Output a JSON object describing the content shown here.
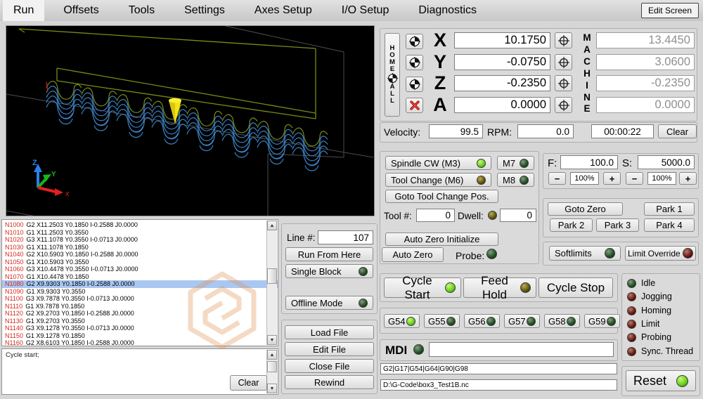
{
  "colors": {
    "led_bright_green": "#6cd41c",
    "led_dark_green": "#224d22",
    "led_olive": "#5d530f",
    "led_dark_red": "#64180f",
    "path_blue": "#3b82c4",
    "path_olive": "#7a8c12",
    "tool_yellow": "#f5e414",
    "selected_row_blue": "#a9c7f1",
    "gcode_lineno_red": "#d3291d"
  },
  "tab_bar": {
    "tabs": [
      {
        "label": "Run",
        "active": true
      },
      {
        "label": "Offsets",
        "active": false
      },
      {
        "label": "Tools",
        "active": false
      },
      {
        "label": "Settings",
        "active": false
      },
      {
        "label": "Axes Setup",
        "active": false
      },
      {
        "label": "I/O Setup",
        "active": false
      },
      {
        "label": "Diagnostics",
        "active": false
      }
    ],
    "edit_screen_label": "Edit Screen"
  },
  "dro": {
    "home_all_top": "HOME",
    "home_all_bottom": "ALL",
    "machine_label": "MACHINE",
    "axes": [
      {
        "label": "X",
        "work": "10.1750",
        "machine": "13.4450"
      },
      {
        "label": "Y",
        "work": "-0.0750",
        "machine": "3.0600"
      },
      {
        "label": "Z",
        "work": "-0.2350",
        "machine": "-0.2350"
      },
      {
        "label": "A",
        "work": "0.0000",
        "machine": "0.0000"
      }
    ]
  },
  "velocity_row": {
    "velocity_label": "Velocity:",
    "velocity": "99.5",
    "rpm_label": "RPM:",
    "rpm": "0.0",
    "timer": "00:00:22",
    "clear_label": "Clear"
  },
  "spindle": {
    "spindle_cw": "Spindle CW (M3)",
    "m7": "M7",
    "tool_change": "Tool Change (M6)",
    "m8": "M8",
    "goto_tool_change": "Goto Tool Change Pos.",
    "tool_label": "Tool #:",
    "tool_value": "0",
    "dwell_label": "Dwell:",
    "dwell_value": "0",
    "auto_zero_init": "Auto Zero Initialize",
    "auto_zero": "Auto Zero",
    "probe_label": "Probe:"
  },
  "feed_speed": {
    "f_label": "F:",
    "f_value": "100.0",
    "s_label": "S:",
    "s_value": "5000.0",
    "minus": "−",
    "plus": "+",
    "f_pct": "100%",
    "s_pct": "100%"
  },
  "park": {
    "goto_zero": "Goto Zero",
    "park1": "Park 1",
    "park2": "Park 2",
    "park3": "Park 3",
    "park4": "Park 4"
  },
  "limits": {
    "softlimits": "Softlimits",
    "limit_override": "Limit Override"
  },
  "cycle": {
    "start": "Cycle Start",
    "feed_hold": "Feed Hold",
    "stop": "Cycle Stop"
  },
  "work_offsets": [
    {
      "label": "G54",
      "led": "led-green"
    },
    {
      "label": "G55",
      "led": "led-dkgreen"
    },
    {
      "label": "G56",
      "led": "led-dkgreen"
    },
    {
      "label": "G57",
      "led": "led-dkgreen"
    },
    {
      "label": "G58",
      "led": "led-dkgreen"
    },
    {
      "label": "G59",
      "led": "led-dkgreen"
    }
  ],
  "status_leds": [
    {
      "label": "Idle",
      "led": "led-dkgreen"
    },
    {
      "label": "Jogging",
      "led": "led-dkred"
    },
    {
      "label": "Homing",
      "led": "led-dkred"
    },
    {
      "label": "Limit",
      "led": "led-dkred"
    },
    {
      "label": "Probing",
      "led": "led-dkred"
    },
    {
      "label": "Sync. Thread",
      "led": "led-dkred"
    }
  ],
  "mdi": {
    "label": "MDI",
    "input_value": "",
    "modal_string": "G2|G17|G54|G64|G90|G98",
    "file_path": "D:\\G-Code\\box3_Test1B.nc"
  },
  "reset": {
    "label": "Reset"
  },
  "program": {
    "line_label": "Line #:",
    "line_value": "107",
    "run_from_here": "Run From Here",
    "single_block": "Single Block",
    "offline_mode": "Offline Mode",
    "load_file": "Load File",
    "edit_file": "Edit File",
    "close_file": "Close File",
    "rewind": "Rewind"
  },
  "gcode": {
    "selected_index": 8,
    "lines": [
      {
        "n": "N1000",
        "rest": "G2 X11.2503 Y0.1850 I-0.2588 J0.0000"
      },
      {
        "n": "N1010",
        "rest": "G1 X11.2503 Y0.3550"
      },
      {
        "n": "N1020",
        "rest": "G3 X11.1078 Y0.3550 I-0.0713 J0.0000"
      },
      {
        "n": "N1030",
        "rest": "G1 X11.1078 Y0.1850"
      },
      {
        "n": "N1040",
        "rest": "G2 X10.5903 Y0.1850 I-0.2588 J0.0000"
      },
      {
        "n": "N1050",
        "rest": "G1 X10.5903 Y0.3550"
      },
      {
        "n": "N1060",
        "rest": "G3 X10.4478 Y0.3550 I-0.0713 J0.0000"
      },
      {
        "n": "N1070",
        "rest": "G1 X10.4478 Y0.1850"
      },
      {
        "n": "N1080",
        "rest": "G2 X9.9303 Y0.1850 I-0.2588 J0.0000"
      },
      {
        "n": "N1090",
        "rest": "G1 X9.9303 Y0.3550"
      },
      {
        "n": "N1100",
        "rest": "G3 X9.7878 Y0.3550 I-0.0713 J0.0000"
      },
      {
        "n": "N1110",
        "rest": "G1 X9.7878 Y0.1850"
      },
      {
        "n": "N1120",
        "rest": "G2 X9.2703 Y0.1850 I-0.2588 J0.0000"
      },
      {
        "n": "N1130",
        "rest": "G1 X9.2703 Y0.3550"
      },
      {
        "n": "N1140",
        "rest": "G3 X9.1278 Y0.3550 I-0.0713 J0.0000"
      },
      {
        "n": "N1150",
        "rest": "G1 X9.1278 Y0.1850"
      },
      {
        "n": "N1160",
        "rest": "G2 X8.6103 Y0.1850 I-0.2588 J0.0000"
      }
    ]
  },
  "message_box": {
    "text": "Cycle start;",
    "clear_label": "Clear"
  }
}
